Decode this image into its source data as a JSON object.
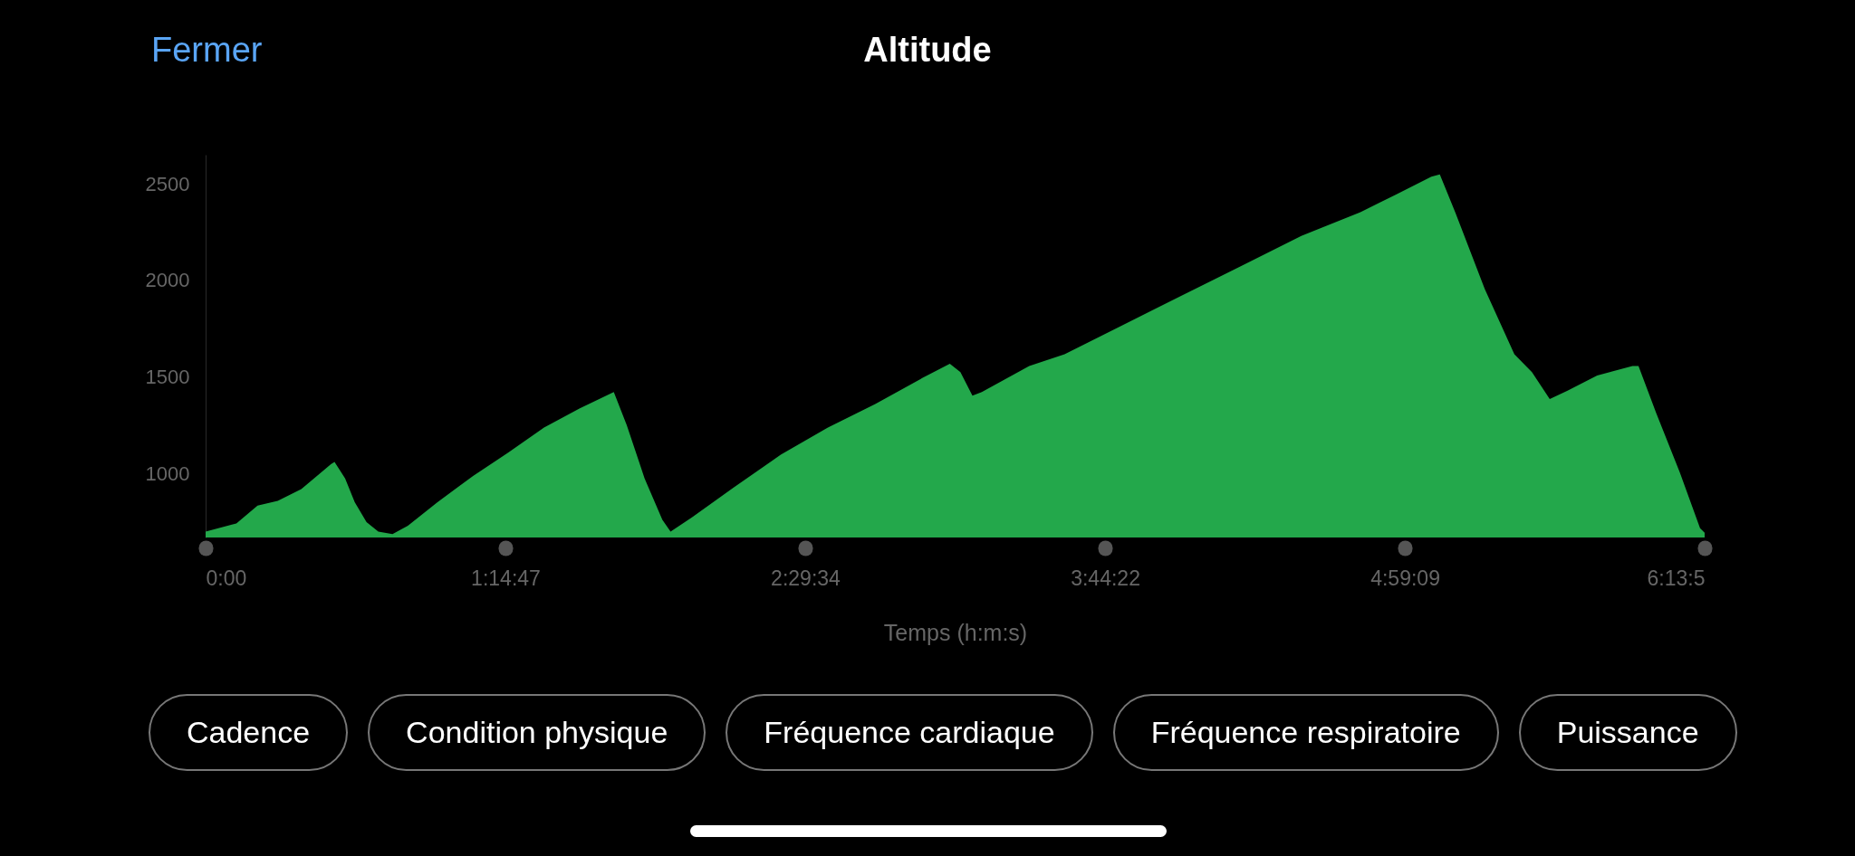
{
  "chart_data": {
    "type": "area",
    "title": "Altitude",
    "xlabel": "Temps (h:m:s)",
    "annotations": [
      "Fermer",
      "Cadence",
      "Condition physique",
      "Fréquence cardiaque",
      "Fréquence respiratoire",
      "Puissance"
    ],
    "x": [
      0,
      0.128,
      0.216,
      0.3,
      0.398,
      0.521,
      0.536,
      0.58,
      0.62,
      0.669,
      0.718,
      0.777,
      0.841,
      0.964,
      1.112,
      1.259,
      1.407,
      1.554,
      1.697,
      1.751,
      1.825,
      1.899,
      1.933,
      2.022,
      2.194,
      2.391,
      2.587,
      2.784,
      2.981,
      3.094,
      3.138,
      3.188,
      3.227,
      3.424,
      3.571,
      3.817,
      4.063,
      4.309,
      4.555,
      4.801,
      4.949,
      5.096,
      5.131,
      5.195,
      5.318,
      5.441,
      5.514,
      5.588,
      5.662,
      5.785,
      5.932,
      5.957,
      6.031,
      6.129,
      6.213,
      6.232
    ],
    "series": [
      {
        "color": "#23a84b",
        "values": [
          700,
          743,
          835,
          859,
          920,
          1049,
          1061,
          975,
          853,
          749,
          700,
          688,
          731,
          853,
          988,
          1110,
          1239,
          1337,
          1422,
          1251,
          976,
          761,
          700,
          774,
          927,
          1098,
          1239,
          1361,
          1496,
          1569,
          1526,
          1404,
          1422,
          1557,
          1618,
          1771,
          1924,
          2077,
          2230,
          2353,
          2444,
          2536,
          2548,
          2353,
          1955,
          1618,
          1526,
          1386,
          1429,
          1508,
          1557,
          1557,
          1312,
          1006,
          718,
          694
        ]
      }
    ],
    "xlim": [
      0,
      6.232
    ],
    "xticks": [
      {
        "value": 0,
        "label": "0:00"
      },
      {
        "value": 1.24639,
        "label": "1:14:47"
      },
      {
        "value": 2.49278,
        "label": "2:29:34"
      },
      {
        "value": 3.73944,
        "label": "3:44:22"
      },
      {
        "value": 4.98583,
        "label": "4:59:09"
      },
      {
        "value": 6.232,
        "label": "6:13:5"
      }
    ],
    "ylim": [
      670,
      2650
    ],
    "yticks": [
      1000,
      1500,
      2000,
      2500
    ],
    "grid": false
  }
}
